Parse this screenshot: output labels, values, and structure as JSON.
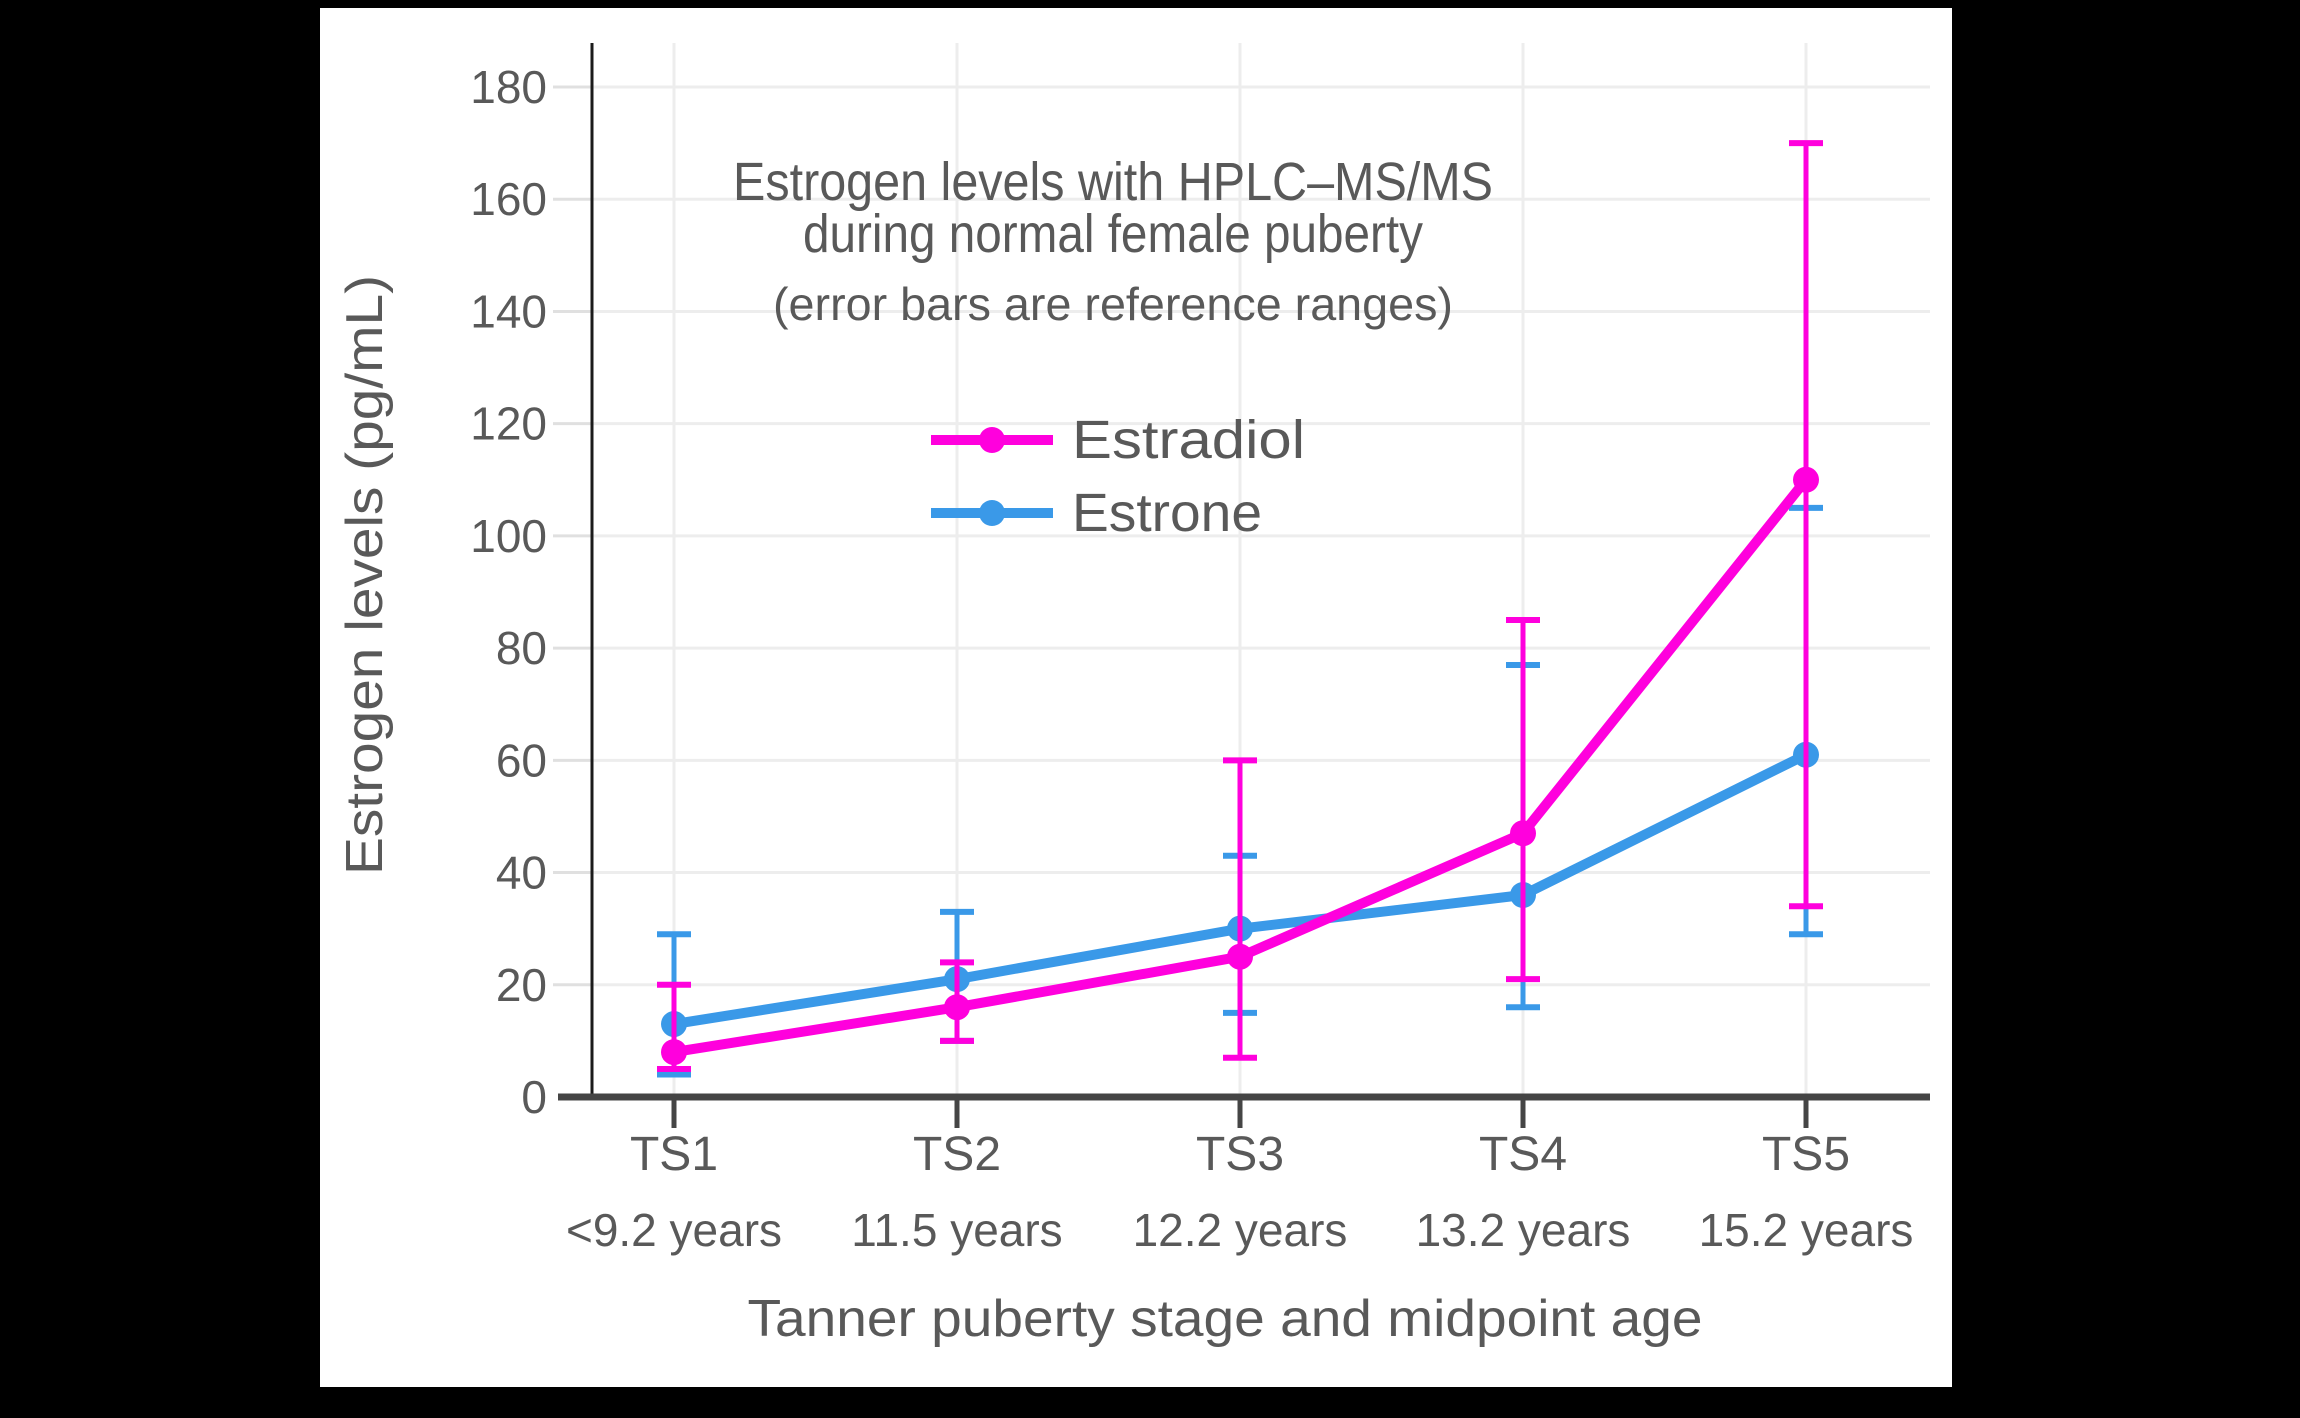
{
  "window": {
    "background": "#000000",
    "canvas_background": "#ffffff"
  },
  "chart_data": {
    "type": "line",
    "title_lines": [
      "Estrogen levels with HPLC–MS/MS",
      "during normal female puberty"
    ],
    "subtitle": "(error bars are reference ranges)",
    "xlabel": "Tanner puberty stage and midpoint age",
    "ylabel": "Estrogen levels (pg/mL)",
    "categories": [
      "TS1",
      "TS2",
      "TS3",
      "TS4",
      "TS5"
    ],
    "category_ages": [
      "<9.2 years",
      "11.5 years",
      "12.2 years",
      "13.2 years",
      "15.2 years"
    ],
    "ylim": [
      0,
      188
    ],
    "yticks": [
      0,
      20,
      40,
      60,
      80,
      100,
      120,
      140,
      160,
      180
    ],
    "grid": true,
    "legend_position": "upper-center",
    "series": [
      {
        "name": "Estradiol",
        "color": "#ff00dd",
        "values": [
          8,
          16,
          25,
          47,
          110
        ],
        "error_low": [
          5,
          10,
          7,
          21,
          34
        ],
        "error_high": [
          20,
          24,
          60,
          85,
          170
        ]
      },
      {
        "name": "Estrone",
        "color": "#3a99e8",
        "values": [
          13,
          21,
          30,
          36,
          61
        ],
        "error_low": [
          4,
          10,
          15,
          16,
          29
        ],
        "error_high": [
          29,
          33,
          43,
          77,
          105
        ]
      }
    ],
    "colors": {
      "text": "#595959",
      "grid": "#ededed",
      "tick_stub": "#e0e0e0",
      "axis": "#454545",
      "yaxis_line": "#1b1b1b"
    }
  }
}
